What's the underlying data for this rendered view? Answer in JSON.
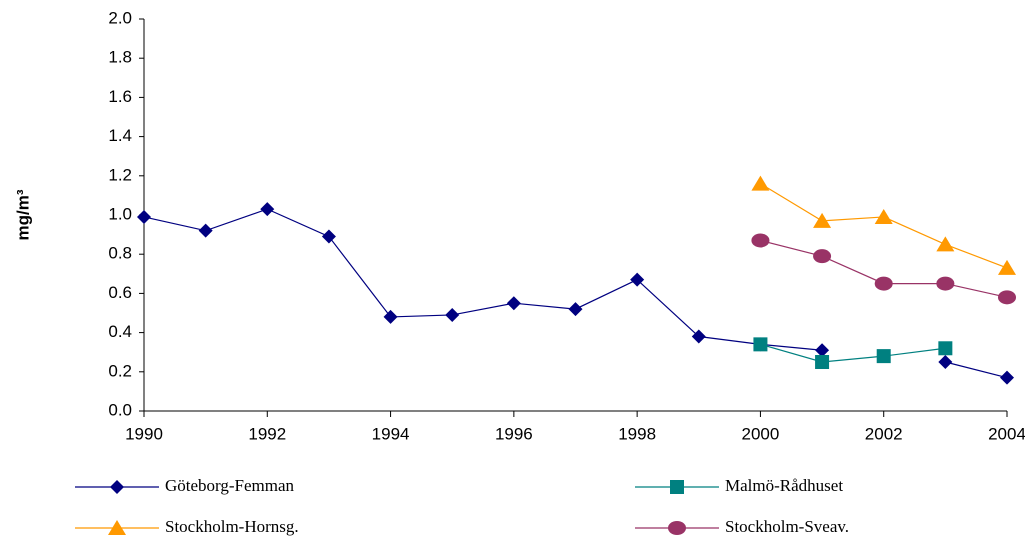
{
  "chart_data": {
    "type": "line",
    "y_label": "mg/m³",
    "x": [
      1990,
      1991,
      1992,
      1993,
      1994,
      1995,
      1996,
      1997,
      1998,
      1999,
      2000,
      2001,
      2002,
      2003,
      2004
    ],
    "xlim": [
      1990,
      2004
    ],
    "xticks": [
      1990,
      1992,
      1994,
      1996,
      1998,
      2000,
      2002,
      2004
    ],
    "ylim": [
      0,
      2
    ],
    "yticks": [
      {
        "value": 0,
        "label": "0.0"
      },
      0.2,
      0.4,
      0.6,
      0.8,
      {
        "value": 1,
        "label": "1.0"
      },
      1.2,
      1.4,
      1.6,
      1.8,
      {
        "value": 2,
        "label": "2.0"
      }
    ],
    "legend": "bottom",
    "series": [
      {
        "name": "Göteborg-Femman",
        "color": "#000080",
        "marker": "diamond",
        "values": [
          0.99,
          0.92,
          1.03,
          0.89,
          0.48,
          0.49,
          0.55,
          0.52,
          0.67,
          0.38,
          0.34,
          0.31,
          null,
          0.25,
          0.17
        ]
      },
      {
        "name": "Malmö-Rådhuset",
        "color": "#008080",
        "marker": "square",
        "values": [
          null,
          null,
          null,
          null,
          null,
          null,
          null,
          null,
          null,
          null,
          0.34,
          0.25,
          0.28,
          0.32,
          null
        ]
      },
      {
        "name": "Stockholm-Hornsg.",
        "color": "#ff9900",
        "marker": "triangle",
        "values": [
          null,
          null,
          null,
          null,
          null,
          null,
          null,
          null,
          null,
          null,
          1.16,
          0.97,
          0.99,
          0.85,
          0.73
        ]
      },
      {
        "name": "Stockholm-Sveav.",
        "color": "#993366",
        "marker": "circle",
        "values": [
          null,
          null,
          null,
          null,
          null,
          null,
          null,
          null,
          null,
          null,
          0.87,
          0.79,
          0.65,
          0.65,
          0.58
        ]
      }
    ]
  }
}
